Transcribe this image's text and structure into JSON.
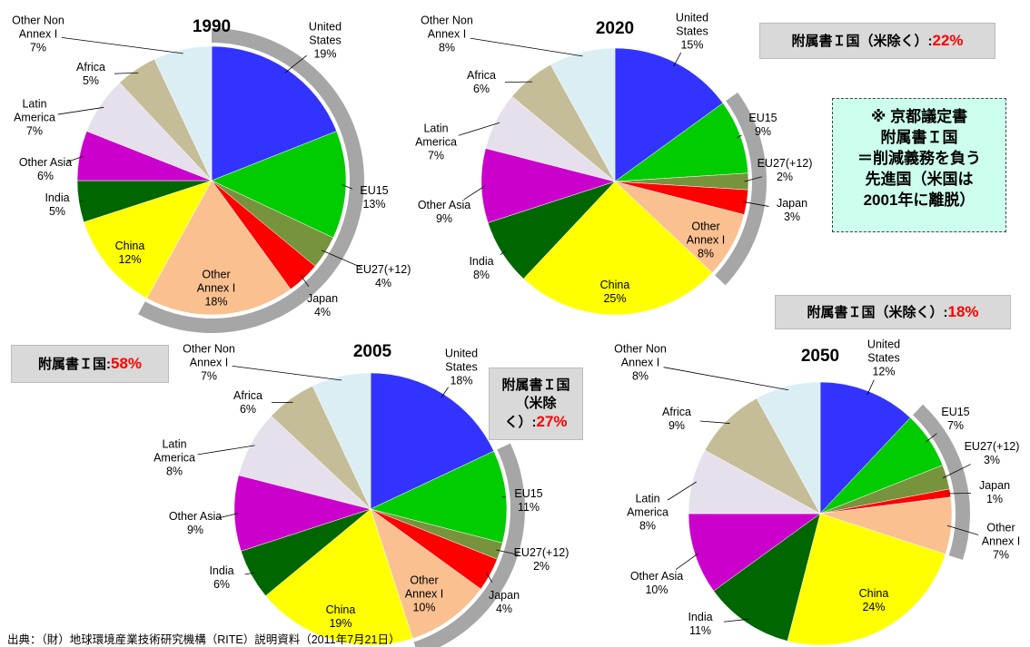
{
  "chart_data": [
    {
      "type": "pie",
      "title": "1990",
      "categories": [
        "United States",
        "EU15",
        "EU27(+12)",
        "Japan",
        "Other Annex I",
        "China",
        "India",
        "Other Asia",
        "Latin America",
        "Africa",
        "Other Non Annex I"
      ],
      "values": [
        19,
        13,
        4,
        4,
        18,
        12,
        5,
        6,
        7,
        5,
        7
      ],
      "value_labels": [
        "19%",
        "13%",
        "4%",
        "4%",
        "18%",
        "12%",
        "5%",
        "6%",
        "7%",
        "5%",
        "7%"
      ],
      "colors": [
        "#3333ff",
        "#00cc00",
        "#77933c",
        "#ff0000",
        "#fac090",
        "#ffff00",
        "#006600",
        "#cc00cc",
        "#e6e0ec",
        "#c4bd97",
        "#dbeef4"
      ],
      "annotation": {
        "label": "附属書Ｉ国:",
        "value": "58%"
      }
    },
    {
      "type": "pie",
      "title": "2020",
      "categories": [
        "United States",
        "EU15",
        "EU27(+12)",
        "Japan",
        "Other Annex I",
        "China",
        "India",
        "Other Asia",
        "Latin America",
        "Africa",
        "Other Non Annex I"
      ],
      "values": [
        15,
        9,
        2,
        3,
        8,
        25,
        8,
        9,
        7,
        6,
        8
      ],
      "value_labels": [
        "15%",
        "9%",
        "2%",
        "3%",
        "8%",
        "25%",
        "8%",
        "9%",
        "7%",
        "6%",
        "8%"
      ],
      "colors": [
        "#3333ff",
        "#00cc00",
        "#77933c",
        "#ff0000",
        "#fac090",
        "#ffff00",
        "#006600",
        "#cc00cc",
        "#e6e0ec",
        "#c4bd97",
        "#dbeef4"
      ],
      "annotation": {
        "label": "附属書Ｉ国（米除く）:",
        "value": "22%"
      }
    },
    {
      "type": "pie",
      "title": "2005",
      "categories": [
        "United States",
        "EU15",
        "EU27(+12)",
        "Japan",
        "Other Annex I",
        "China",
        "India",
        "Other Asia",
        "Latin America",
        "Africa",
        "Other Non Annex I"
      ],
      "values": [
        18,
        11,
        2,
        4,
        10,
        19,
        6,
        9,
        8,
        6,
        7
      ],
      "value_labels": [
        "18%",
        "11%",
        "2%",
        "4%",
        "10%",
        "19%",
        "6%",
        "9%",
        "8%",
        "6%",
        "7%"
      ],
      "colors": [
        "#3333ff",
        "#00cc00",
        "#77933c",
        "#ff0000",
        "#fac090",
        "#ffff00",
        "#006600",
        "#cc00cc",
        "#e6e0ec",
        "#c4bd97",
        "#dbeef4"
      ],
      "annotation": {
        "label": "附属書Ｉ国（米除く）:",
        "value": "27%"
      }
    },
    {
      "type": "pie",
      "title": "2050",
      "categories": [
        "United States",
        "EU15",
        "EU27(+12)",
        "Japan",
        "Other Annex I",
        "China",
        "India",
        "Other Asia",
        "Latin America",
        "Africa",
        "Other Non Annex I"
      ],
      "values": [
        12,
        7,
        3,
        1,
        7,
        24,
        11,
        10,
        8,
        9,
        8
      ],
      "value_labels": [
        "12%",
        "7%",
        "3%",
        "1%",
        "7%",
        "24%",
        "11%",
        "10%",
        "8%",
        "9%",
        "8%"
      ],
      "colors": [
        "#3333ff",
        "#00cc00",
        "#77933c",
        "#ff0000",
        "#fac090",
        "#ffff00",
        "#006600",
        "#cc00cc",
        "#e6e0ec",
        "#c4bd97",
        "#dbeef4"
      ],
      "annotation": {
        "label": "附属書Ｉ国（米除く）:",
        "value": "18%"
      }
    }
  ],
  "note": [
    "※ 京都議定書",
    "附属書Ｉ国",
    "＝削減義務を負う",
    "先進国（米国は",
    "2001年に離脱）"
  ],
  "source": "出典：（財）地球環境産業技術研究機構（RITE）説明資料（2011年7月21日）"
}
